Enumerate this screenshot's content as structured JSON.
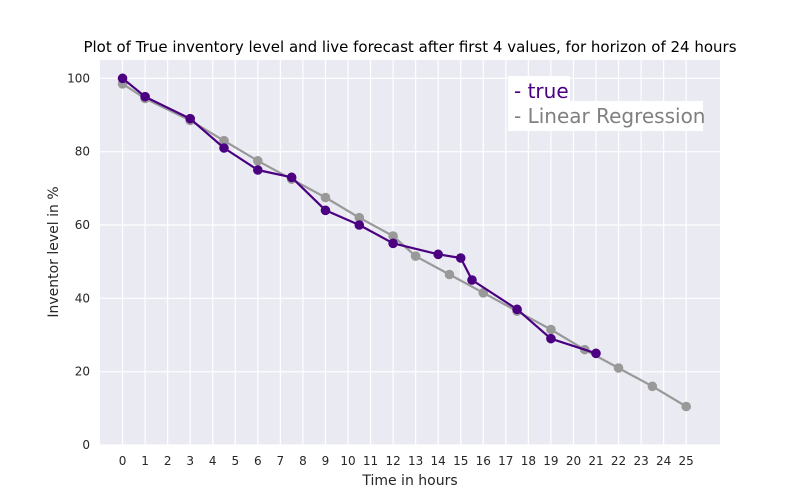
{
  "chart_data": {
    "type": "line",
    "title": "Plot of True inventory level and live forecast after first 4 values, for horizon of 24 hours",
    "xlabel": "Time in hours",
    "ylabel": "Inventor level in %",
    "xlim": [
      -1,
      26.5
    ],
    "ylim": [
      0,
      105
    ],
    "xticks": [
      0,
      1,
      2,
      3,
      4,
      5,
      6,
      7,
      8,
      9,
      10,
      11,
      12,
      13,
      14,
      15,
      16,
      17,
      18,
      19,
      20,
      21,
      22,
      23,
      24,
      25
    ],
    "yticks": [
      0,
      20,
      40,
      60,
      80,
      100
    ],
    "grid": true,
    "legend_position": "top-right",
    "colors": {
      "background": "#eaeaf2",
      "grid": "#ffffff"
    },
    "series": [
      {
        "name": "Linear Regression",
        "legend_label": "- Linear Regression",
        "color": "#999999",
        "x": [
          0,
          1,
          3,
          4.5,
          6,
          7.5,
          9,
          10.5,
          12,
          13,
          14.5,
          16,
          17.5,
          19,
          20.5,
          22,
          23.5,
          25
        ],
        "y": [
          98.5,
          94.5,
          88.5,
          83,
          77.5,
          72.5,
          67.5,
          62,
          57,
          51.5,
          46.5,
          41.5,
          36.5,
          31.5,
          26,
          21,
          16,
          10.5
        ]
      },
      {
        "name": "true",
        "legend_label": "- true",
        "color": "#4b0082",
        "x": [
          0,
          1,
          3,
          4.5,
          6,
          7.5,
          9,
          10.5,
          12,
          14,
          15,
          15.5,
          17.5,
          19,
          21
        ],
        "y": [
          100,
          95,
          89,
          81,
          75,
          73,
          64,
          60,
          55,
          52,
          51,
          45,
          37,
          29,
          25
        ]
      }
    ]
  }
}
